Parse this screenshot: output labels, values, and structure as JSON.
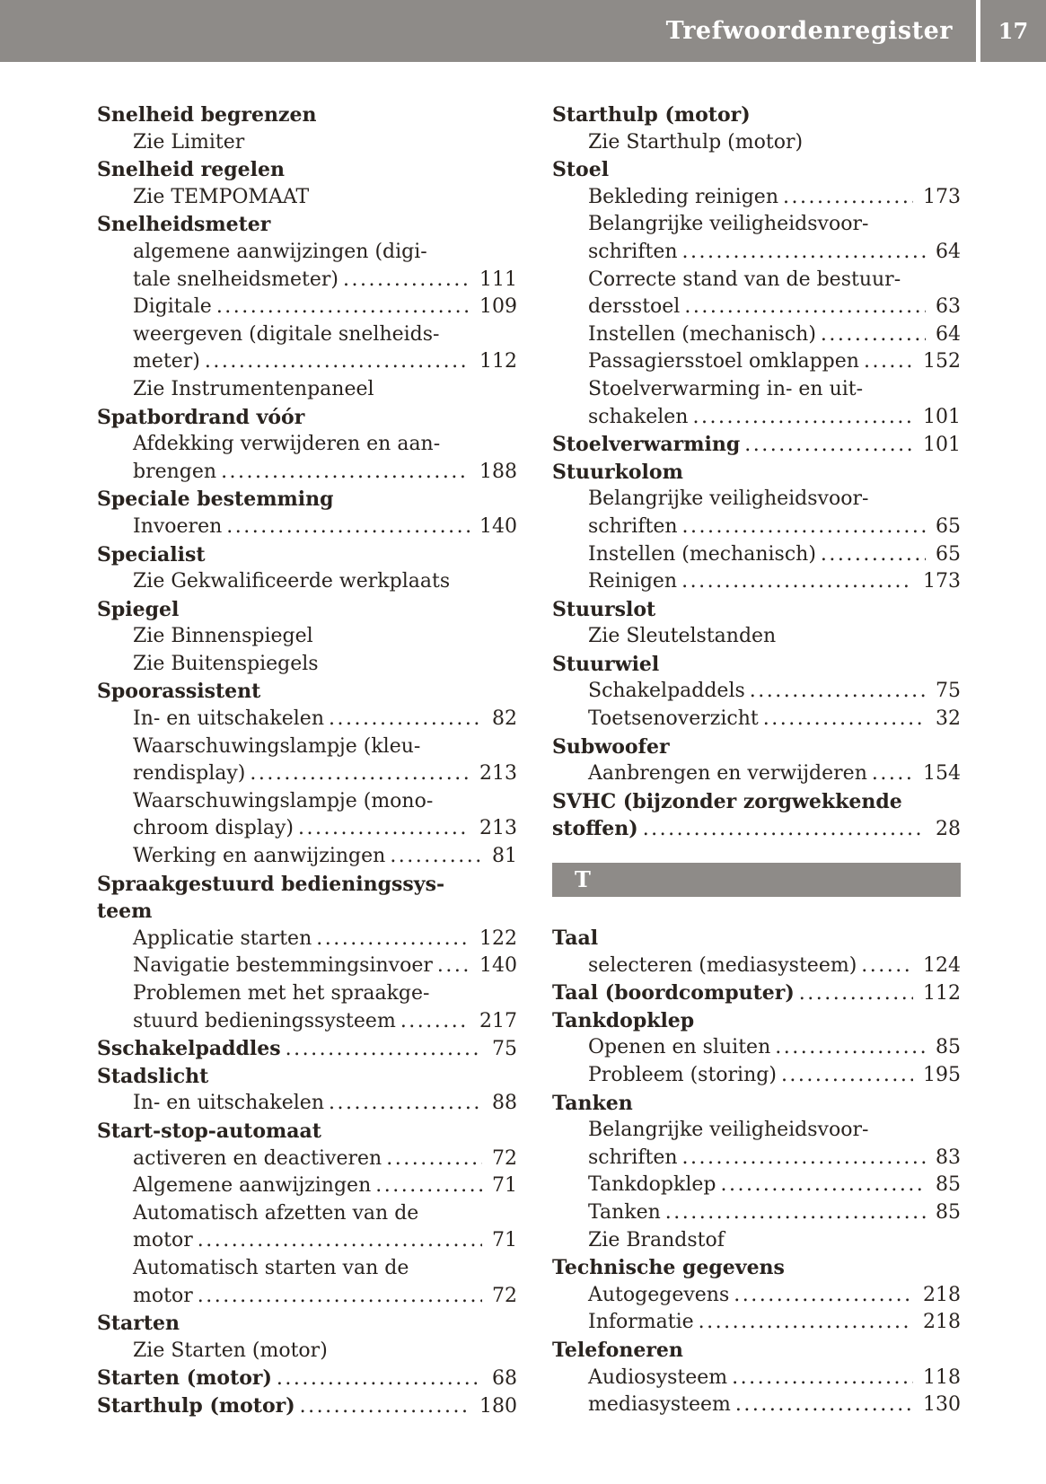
{
  "colors": {
    "bar": "#8e8b88",
    "text": "#29231f",
    "background": "#ffffff"
  },
  "header": {
    "title": "Trefwoordenregister",
    "page_number": "17"
  },
  "index": {
    "left": [
      {
        "text": "Snelheid begrenzen",
        "style": "head"
      },
      {
        "text": "Zie Limiter",
        "style": "sub"
      },
      {
        "text": "Snelheid regelen",
        "style": "head"
      },
      {
        "text": "Zie TEMPOMAAT",
        "style": "sub"
      },
      {
        "text": "Snelheidsmeter",
        "style": "head"
      },
      {
        "text": "algemene aanwijzingen (digi-",
        "style": "sub"
      },
      {
        "text": "tale snelheidsmeter)",
        "style": "sub",
        "page": "111"
      },
      {
        "text": "Digitale",
        "style": "sub",
        "page": "109"
      },
      {
        "text": "weergeven (digitale snelheids-",
        "style": "sub"
      },
      {
        "text": "meter)",
        "style": "sub",
        "page": "112"
      },
      {
        "text": "Zie Instrumentenpaneel",
        "style": "sub"
      },
      {
        "text": "Spatbordrand vóór",
        "style": "head"
      },
      {
        "text": "Afdekking verwijderen en aan-",
        "style": "sub"
      },
      {
        "text": "brengen",
        "style": "sub",
        "page": "188"
      },
      {
        "text": "Speciale bestemming",
        "style": "head"
      },
      {
        "text": "Invoeren",
        "style": "sub",
        "page": "140"
      },
      {
        "text": "Specialist",
        "style": "head"
      },
      {
        "text": "Zie Gekwalificeerde werkplaats",
        "style": "sub"
      },
      {
        "text": "Spiegel",
        "style": "head"
      },
      {
        "text": "Zie Binnenspiegel",
        "style": "sub"
      },
      {
        "text": "Zie Buitenspiegels",
        "style": "sub"
      },
      {
        "text": "Spoorassistent",
        "style": "head"
      },
      {
        "text": "In- en uitschakelen",
        "style": "sub",
        "page": "82"
      },
      {
        "text": "Waarschuwingslampje (kleu-",
        "style": "sub"
      },
      {
        "text": "rendisplay)",
        "style": "sub",
        "page": "213"
      },
      {
        "text": "Waarschuwingslampje (mono-",
        "style": "sub"
      },
      {
        "text": "chroom display)",
        "style": "sub",
        "page": "213"
      },
      {
        "text": "Werking en aanwijzingen",
        "style": "sub",
        "page": "81"
      },
      {
        "text": "Spraakgestuurd bedieningssys-",
        "style": "head"
      },
      {
        "text": "teem",
        "style": "head"
      },
      {
        "text": "Applicatie starten",
        "style": "sub",
        "page": "122"
      },
      {
        "text": "Navigatie bestemmingsinvoer",
        "style": "sub",
        "page": "140"
      },
      {
        "text": "Problemen met het spraakge-",
        "style": "sub"
      },
      {
        "text": "stuurd bedieningssysteem",
        "style": "sub",
        "page": "217"
      },
      {
        "text": "Sschakelpaddles",
        "style": "head",
        "page": "75"
      },
      {
        "text": "Stadslicht",
        "style": "head"
      },
      {
        "text": "In- en uitschakelen",
        "style": "sub",
        "page": "88"
      },
      {
        "text": "Start-stop-automaat",
        "style": "head"
      },
      {
        "text": "activeren en deactiveren",
        "style": "sub",
        "page": "72"
      },
      {
        "text": "Algemene aanwijzingen",
        "style": "sub",
        "page": "71"
      },
      {
        "text": "Automatisch afzetten van de",
        "style": "sub"
      },
      {
        "text": "motor",
        "style": "sub",
        "page": "71"
      },
      {
        "text": "Automatisch starten van de",
        "style": "sub"
      },
      {
        "text": "motor",
        "style": "sub",
        "page": "72"
      },
      {
        "text": "Starten",
        "style": "head"
      },
      {
        "text": "Zie Starten (motor)",
        "style": "sub"
      },
      {
        "text": "Starten (motor)",
        "style": "head",
        "page": "68"
      },
      {
        "text": "Starthulp (motor)",
        "style": "head",
        "page": "180"
      }
    ],
    "right": [
      {
        "text": "Starthulp (motor)",
        "style": "head"
      },
      {
        "text": "Zie Starthulp (motor)",
        "style": "sub"
      },
      {
        "text": "Stoel",
        "style": "head"
      },
      {
        "text": "Bekleding reinigen",
        "style": "sub",
        "page": "173"
      },
      {
        "text": "Belangrijke veiligheidsvoor-",
        "style": "sub"
      },
      {
        "text": "schriften",
        "style": "sub",
        "page": "64"
      },
      {
        "text": "Correcte stand van de bestuur-",
        "style": "sub"
      },
      {
        "text": "dersstoel",
        "style": "sub",
        "page": "63"
      },
      {
        "text": "Instellen (mechanisch)",
        "style": "sub",
        "page": "64"
      },
      {
        "text": "Passagiersstoel omklappen",
        "style": "sub",
        "page": "152"
      },
      {
        "text": "Stoelverwarming in- en uit-",
        "style": "sub"
      },
      {
        "text": "schakelen",
        "style": "sub",
        "page": "101"
      },
      {
        "text": "Stoelverwarming",
        "style": "head",
        "page": "101"
      },
      {
        "text": "Stuurkolom",
        "style": "head"
      },
      {
        "text": "Belangrijke veiligheidsvoor-",
        "style": "sub"
      },
      {
        "text": "schriften",
        "style": "sub",
        "page": "65"
      },
      {
        "text": "Instellen (mechanisch)",
        "style": "sub",
        "page": "65"
      },
      {
        "text": "Reinigen",
        "style": "sub",
        "page": "173"
      },
      {
        "text": "Stuurslot",
        "style": "head"
      },
      {
        "text": "Zie Sleutelstanden",
        "style": "sub"
      },
      {
        "text": "Stuurwiel",
        "style": "head"
      },
      {
        "text": "Schakelpaddels",
        "style": "sub",
        "page": "75"
      },
      {
        "text": "Toetsenoverzicht",
        "style": "sub",
        "page": "32"
      },
      {
        "text": "Subwoofer",
        "style": "head"
      },
      {
        "text": "Aanbrengen en verwijderen",
        "style": "sub",
        "page": "154"
      },
      {
        "text": "SVHC (bijzonder zorgwekkende",
        "style": "head"
      },
      {
        "text": "stoffen)",
        "style": "head",
        "page": "28"
      },
      {
        "section": "T"
      },
      {
        "text": "Taal",
        "style": "head"
      },
      {
        "text": "selecteren (mediasysteem)",
        "style": "sub",
        "page": "124"
      },
      {
        "text": "Taal (boordcomputer)",
        "style": "head",
        "page": "112"
      },
      {
        "text": "Tankdopklep",
        "style": "head"
      },
      {
        "text": "Openen en sluiten",
        "style": "sub",
        "page": "85"
      },
      {
        "text": "Probleem (storing)",
        "style": "sub",
        "page": "195"
      },
      {
        "text": "Tanken",
        "style": "head"
      },
      {
        "text": "Belangrijke veiligheidsvoor-",
        "style": "sub"
      },
      {
        "text": "schriften",
        "style": "sub",
        "page": "83"
      },
      {
        "text": "Tankdopklep",
        "style": "sub",
        "page": "85"
      },
      {
        "text": "Tanken",
        "style": "sub",
        "page": "85"
      },
      {
        "text": "Zie Brandstof",
        "style": "sub"
      },
      {
        "text": "Technische gegevens",
        "style": "head"
      },
      {
        "text": "Autogegevens",
        "style": "sub",
        "page": "218"
      },
      {
        "text": "Informatie",
        "style": "sub",
        "page": "218"
      },
      {
        "text": "Telefoneren",
        "style": "head"
      },
      {
        "text": "Audiosysteem",
        "style": "sub",
        "page": "118"
      },
      {
        "text": "mediasysteem",
        "style": "sub",
        "page": "130"
      }
    ]
  }
}
